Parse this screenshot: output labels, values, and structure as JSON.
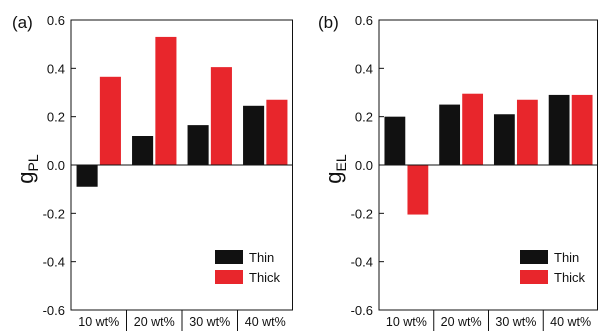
{
  "chart_data": [
    {
      "type": "bar",
      "panel_label": "(a)",
      "ylabel": {
        "main": "g",
        "sub": "PL"
      },
      "categories": [
        "10 wt%",
        "20 wt%",
        "30 wt%",
        "40 wt%"
      ],
      "series": [
        {
          "name": "Thin",
          "color": "#111111",
          "values": [
            -0.09,
            0.12,
            0.165,
            0.245
          ]
        },
        {
          "name": "Thick",
          "color": "#e8262c",
          "values": [
            0.365,
            0.53,
            0.405,
            0.27
          ]
        }
      ],
      "ylim": [
        -0.6,
        0.6
      ],
      "yticks": [
        -0.6,
        -0.4,
        -0.2,
        0.0,
        0.2,
        0.4,
        0.6
      ],
      "ytick_labels": [
        "-0.6",
        "-0.4",
        "-0.2",
        "0.0",
        "0.2",
        "0.4",
        "0.6"
      ],
      "legend": "bottom-right",
      "grid": false
    },
    {
      "type": "bar",
      "panel_label": "(b)",
      "ylabel": {
        "main": "g",
        "sub": "EL"
      },
      "categories": [
        "10 wt%",
        "20 wt%",
        "30 wt%",
        "40 wt%"
      ],
      "series": [
        {
          "name": "Thin",
          "color": "#111111",
          "values": [
            0.2,
            0.25,
            0.21,
            0.29
          ]
        },
        {
          "name": "Thick",
          "color": "#e8262c",
          "values": [
            -0.205,
            0.295,
            0.27,
            0.29
          ]
        }
      ],
      "ylim": [
        -0.6,
        0.6
      ],
      "yticks": [
        -0.6,
        -0.4,
        -0.2,
        0.0,
        0.2,
        0.4,
        0.6
      ],
      "ytick_labels": [
        "-0.6",
        "-0.4",
        "-0.2",
        "0.0",
        "0.2",
        "0.4",
        "0.6"
      ],
      "legend": "bottom-right",
      "grid": false
    }
  ]
}
